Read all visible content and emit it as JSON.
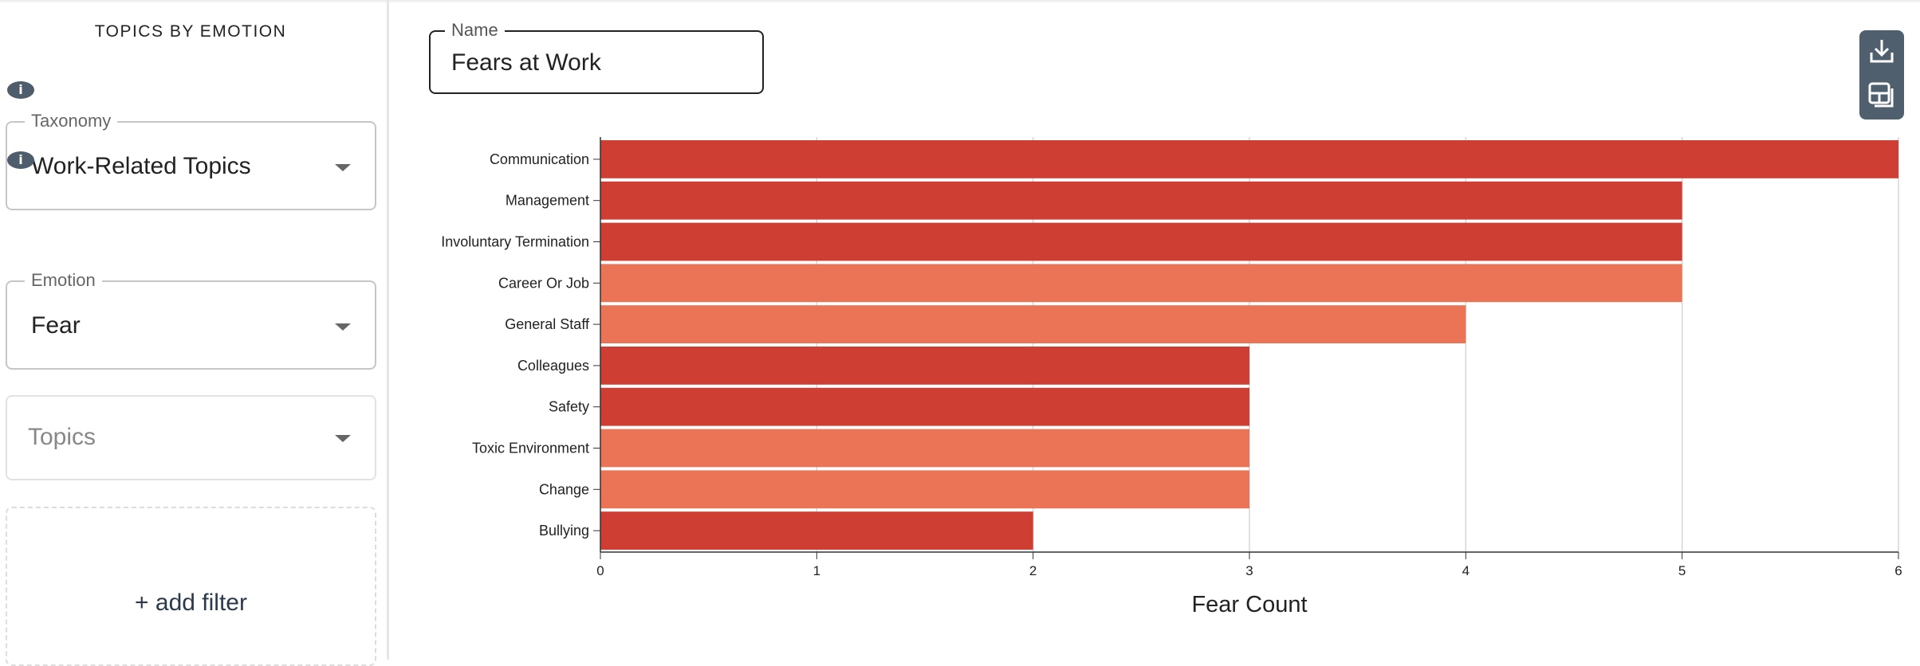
{
  "sidebar": {
    "title": "TOPICS BY EMOTION",
    "taxonomy": {
      "label": "Taxonomy",
      "value": "Work-Related Topics"
    },
    "emotion": {
      "label": "Emotion",
      "value": "Fear"
    },
    "topics": {
      "placeholder": "Topics"
    },
    "add_filter": "+ add filter",
    "info_icon": "i"
  },
  "name_field": {
    "label": "Name",
    "value": "Fears at Work"
  },
  "toolbar": {
    "icons": [
      "download-icon",
      "add-to-dashboard-icon"
    ]
  },
  "colors": {
    "dark": "#cf3e32",
    "light": "#ec7456",
    "panel": "#4f5f6e"
  },
  "chart_data": {
    "type": "bar",
    "orientation": "horizontal",
    "categories": [
      "Communication",
      "Management",
      "Involuntary Termination",
      "Career Or Job",
      "General Staff",
      "Colleagues",
      "Safety",
      "Toxic Environment",
      "Change",
      "Bullying"
    ],
    "values": [
      6,
      5,
      5,
      5,
      4,
      3,
      3,
      3,
      3,
      2
    ],
    "bar_colors": [
      "#cf3e32",
      "#cf3e32",
      "#cf3e32",
      "#ec7456",
      "#ec7456",
      "#cf3e32",
      "#cf3e32",
      "#ec7456",
      "#ec7456",
      "#cf3e32"
    ],
    "xlabel": "Fear Count",
    "xlim": [
      0,
      6
    ],
    "xticks": [
      "0",
      "1",
      "2",
      "3",
      "4",
      "5",
      "6"
    ],
    "grid": "vertical"
  }
}
